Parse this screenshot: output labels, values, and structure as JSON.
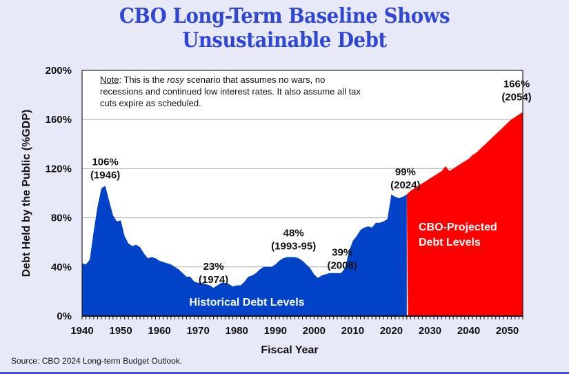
{
  "title": {
    "line1": "CBO Long-Term Baseline Shows",
    "line2": "Unsustainable Debt"
  },
  "note": {
    "key": "Note",
    "text_a": ": This is the ",
    "emphasis": "rosy",
    "text_b": " scenario that assumes no wars, no recessions and continued low interest rates. It also assume all tax cuts expire as scheduled."
  },
  "source": "Source: CBO 2024 Long-term Budget Outlook.",
  "colors": {
    "historical": "#0042c8",
    "projected": "#ff0000",
    "grid": "#b0b0b0",
    "title": "#2f47d6"
  },
  "chart_data": {
    "type": "area",
    "title": "CBO Long-Term Baseline Shows Unsustainable Debt",
    "xlabel": "Fiscal Year",
    "ylabel": "Debt Held by the Public (%GDP)",
    "xlim": [
      1940,
      2054
    ],
    "ylim": [
      0,
      200
    ],
    "x_ticks": [
      1940,
      1950,
      1960,
      1970,
      1980,
      1990,
      2000,
      2010,
      2020,
      2030,
      2040,
      2050
    ],
    "y_ticks": [
      0,
      40,
      80,
      120,
      160,
      200
    ],
    "y_tick_labels": [
      "0%",
      "40%",
      "80%",
      "120%",
      "160%",
      "200%"
    ],
    "grid": true,
    "series": [
      {
        "name": "Historical Debt Levels",
        "x": [
          1940,
          1941,
          1942,
          1943,
          1944,
          1945,
          1946,
          1947,
          1948,
          1949,
          1950,
          1951,
          1952,
          1953,
          1954,
          1955,
          1956,
          1957,
          1958,
          1959,
          1960,
          1961,
          1962,
          1963,
          1964,
          1965,
          1966,
          1967,
          1968,
          1969,
          1970,
          1971,
          1972,
          1973,
          1974,
          1975,
          1976,
          1977,
          1978,
          1979,
          1980,
          1981,
          1982,
          1983,
          1984,
          1985,
          1986,
          1987,
          1988,
          1989,
          1990,
          1991,
          1992,
          1993,
          1994,
          1995,
          1996,
          1997,
          1998,
          1999,
          2000,
          2001,
          2002,
          2003,
          2004,
          2005,
          2006,
          2007,
          2008,
          2009,
          2010,
          2011,
          2012,
          2013,
          2014,
          2015,
          2016,
          2017,
          2018,
          2019,
          2020,
          2021,
          2022,
          2023,
          2024
        ],
        "values": [
          43,
          42,
          46,
          69,
          89,
          104,
          106,
          94,
          82,
          77,
          78,
          65,
          59,
          57,
          58,
          56,
          51,
          47,
          48,
          47,
          45,
          44,
          43,
          42,
          40,
          38,
          35,
          32,
          32,
          28,
          27,
          27,
          26,
          25,
          23,
          25,
          27,
          27,
          26,
          24,
          25,
          25,
          28,
          32,
          33,
          35,
          38,
          40,
          40,
          40,
          42,
          45,
          47,
          48,
          48,
          48,
          47,
          45,
          42,
          39,
          34,
          31,
          33,
          34,
          35,
          35,
          35,
          35,
          39,
          52,
          61,
          65,
          70,
          72,
          73,
          72,
          76,
          76,
          77,
          79,
          99,
          97,
          96,
          97,
          99
        ]
      },
      {
        "name": "CBO-Projected Debt Levels",
        "x": [
          2024,
          2025,
          2026,
          2027,
          2028,
          2029,
          2030,
          2031,
          2032,
          2033,
          2034,
          2035,
          2036,
          2037,
          2038,
          2039,
          2040,
          2041,
          2042,
          2043,
          2044,
          2045,
          2046,
          2047,
          2048,
          2049,
          2050,
          2051,
          2052,
          2053,
          2054
        ],
        "values": [
          99,
          102,
          104,
          106,
          108,
          110,
          112,
          114,
          116,
          118,
          122,
          118,
          120,
          122,
          124,
          126,
          128,
          131,
          133,
          136,
          139,
          142,
          145,
          148,
          151,
          154,
          157,
          160,
          162,
          164,
          166
        ]
      }
    ],
    "annotations": [
      {
        "line1": "106%",
        "line2": "(1946)",
        "x": 1946,
        "y": 106
      },
      {
        "line1": "23%",
        "line2": "(1974)",
        "x": 1974,
        "y": 23
      },
      {
        "line1": "48%",
        "line2": "(1993-95)",
        "x": 1994,
        "y": 48
      },
      {
        "line1": "39%",
        "line2": "(2008)",
        "x": 2008,
        "y": 39
      },
      {
        "line1": "99%",
        "line2": "(2024)",
        "x": 2024,
        "y": 99
      },
      {
        "line1": "166%",
        "line2": "(2054)",
        "x": 2054,
        "y": 166
      }
    ],
    "region_labels": [
      {
        "text": "Historical Debt Levels"
      },
      {
        "line1": "CBO-Projected",
        "line2": "Debt Levels"
      }
    ]
  }
}
